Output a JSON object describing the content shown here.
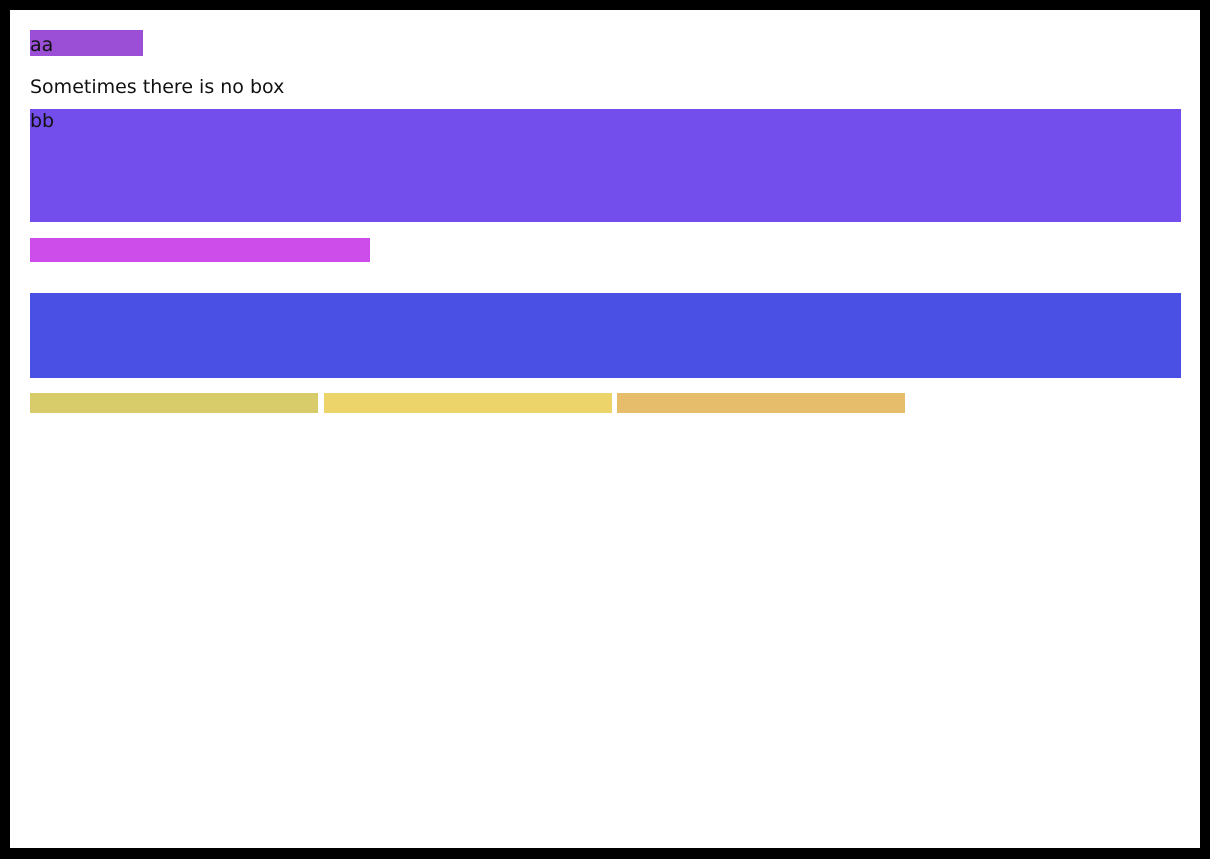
{
  "boxes": {
    "aa_label": "aa",
    "note": "Sometimes there is no box",
    "bb_label": "bb"
  },
  "colors": {
    "aa": "#9b4fd6",
    "bb": "#744ded",
    "magenta_bar": "#cc4de9",
    "blue_block": "#4a50e3",
    "yellow_1": "#d8cc6a",
    "yellow_2": "#ecd46a",
    "yellow_3": "#e6bd6a"
  }
}
